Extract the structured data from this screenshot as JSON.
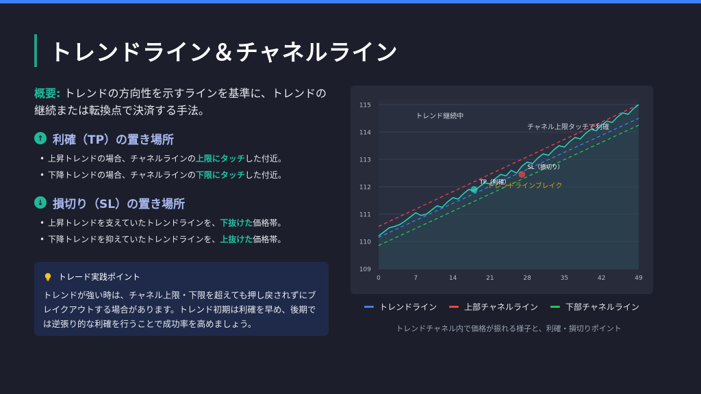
{
  "title": "トレンドライン＆チャネルライン",
  "summary": {
    "label": "概要:",
    "text": " トレンドの方向性を示すラインを基準に、トレンドの継続または転換点で決済する手法。"
  },
  "tp_section": {
    "title": "利確（TP）の置き場所",
    "icon": "arrow-up-circle-icon",
    "items": [
      {
        "pre": "上昇トレンドの場合、チャネルラインの",
        "hl": "上限にタッチ",
        "post": "した付近。"
      },
      {
        "pre": "下降トレンドの場合、チャネルラインの",
        "hl": "下限にタッチ",
        "post": "した付近。"
      }
    ]
  },
  "sl_section": {
    "title": "損切り（SL）の置き場所",
    "icon": "arrow-down-circle-icon",
    "items": [
      {
        "pre": "上昇トレンドを支えていたトレンドラインを、",
        "hl": "下抜けた",
        "post": "価格帯。"
      },
      {
        "pre": "下降トレンドを抑えていたトレンドラインを、",
        "hl": "上抜けた",
        "post": "価格帯。"
      }
    ]
  },
  "tip": {
    "icon": "lightbulb-icon",
    "title": "トレード実践ポイント",
    "body": "トレンドが強い時は、チャネル上限・下限を超えても押し戻されずにブレイクアウトする場合があります。トレンド初期は利確を早め、後期では逆張り的な利確を行うことで成功率を高めましょう。"
  },
  "caption": "トレンドチャネル内で価格が振れる様子と、利確・損切りポイント",
  "colors": {
    "accent": "#22b89a",
    "trend": "#3b82f6",
    "upper": "#ef4444",
    "lower": "#22c55e",
    "price": "#2dd4bf",
    "annotation": "#d4a017"
  },
  "chart_data": {
    "type": "line",
    "x_ticks": [
      0,
      7,
      14,
      21,
      28,
      35,
      42,
      49
    ],
    "y_ticks": [
      109,
      110,
      111,
      112,
      113,
      114,
      115
    ],
    "xlim": [
      0,
      49
    ],
    "ylim": [
      109,
      115.2
    ],
    "series": [
      {
        "name": "トレンドライン",
        "color": "#3b82f6",
        "dash": true,
        "x": [
          0,
          49
        ],
        "y": [
          110.15,
          114.5
        ]
      },
      {
        "name": "上部チャネルライン",
        "color": "#ef4444",
        "dash": true,
        "x": [
          0,
          49
        ],
        "y": [
          110.55,
          115.0
        ]
      },
      {
        "name": "下部チャネルライン",
        "color": "#22c55e",
        "dash": true,
        "x": [
          0,
          49
        ],
        "y": [
          109.85,
          114.25
        ]
      },
      {
        "color": "#2dd4bf",
        "dash": false,
        "fill": true,
        "x": [
          0,
          1,
          2,
          3,
          4,
          5,
          6,
          7,
          8,
          9,
          10,
          11,
          12,
          13,
          14,
          15,
          16,
          17,
          18,
          19,
          20,
          21,
          22,
          23,
          24,
          25,
          26,
          27,
          28,
          29,
          30,
          31,
          32,
          33,
          34,
          35,
          36,
          37,
          38,
          39,
          40,
          41,
          42,
          43,
          44,
          45,
          46,
          47,
          48,
          49
        ],
        "y": [
          110.2,
          110.35,
          110.5,
          110.55,
          110.62,
          110.75,
          110.9,
          111.05,
          110.95,
          111.0,
          111.15,
          111.3,
          111.25,
          111.45,
          111.6,
          111.55,
          111.75,
          111.9,
          111.85,
          112.0,
          112.15,
          112.1,
          112.3,
          112.45,
          112.4,
          112.6,
          112.5,
          112.75,
          112.9,
          112.85,
          113.05,
          113.2,
          113.15,
          113.35,
          113.5,
          113.45,
          113.65,
          113.8,
          113.75,
          113.95,
          114.1,
          114.05,
          114.25,
          114.4,
          114.35,
          114.55,
          114.7,
          114.65,
          114.85,
          115.0
        ]
      }
    ],
    "points": [
      {
        "label": "TP（利確）",
        "x": 18,
        "y": 111.9,
        "color": "#2dd4bf"
      },
      {
        "label": "SL（損切り）",
        "x": 27,
        "y": 112.45,
        "color": "#ef4444"
      }
    ],
    "annotations": [
      {
        "text": "トレンド継続中",
        "x": 7,
        "y": 114.5,
        "color": "#cfd3dc"
      },
      {
        "text": "チャネル上限タッチで利確",
        "x": 28,
        "y": 114.1,
        "color": "#cfd3dc"
      },
      {
        "text": "トレンドラインブレイク",
        "x": 20.5,
        "y": 111.95,
        "color": "#d4a017"
      }
    ]
  },
  "legend": [
    {
      "label": "トレンドライン",
      "color": "#3b82f6"
    },
    {
      "label": "上部チャネルライン",
      "color": "#ef4444"
    },
    {
      "label": "下部チャネルライン",
      "color": "#22c55e"
    }
  ]
}
